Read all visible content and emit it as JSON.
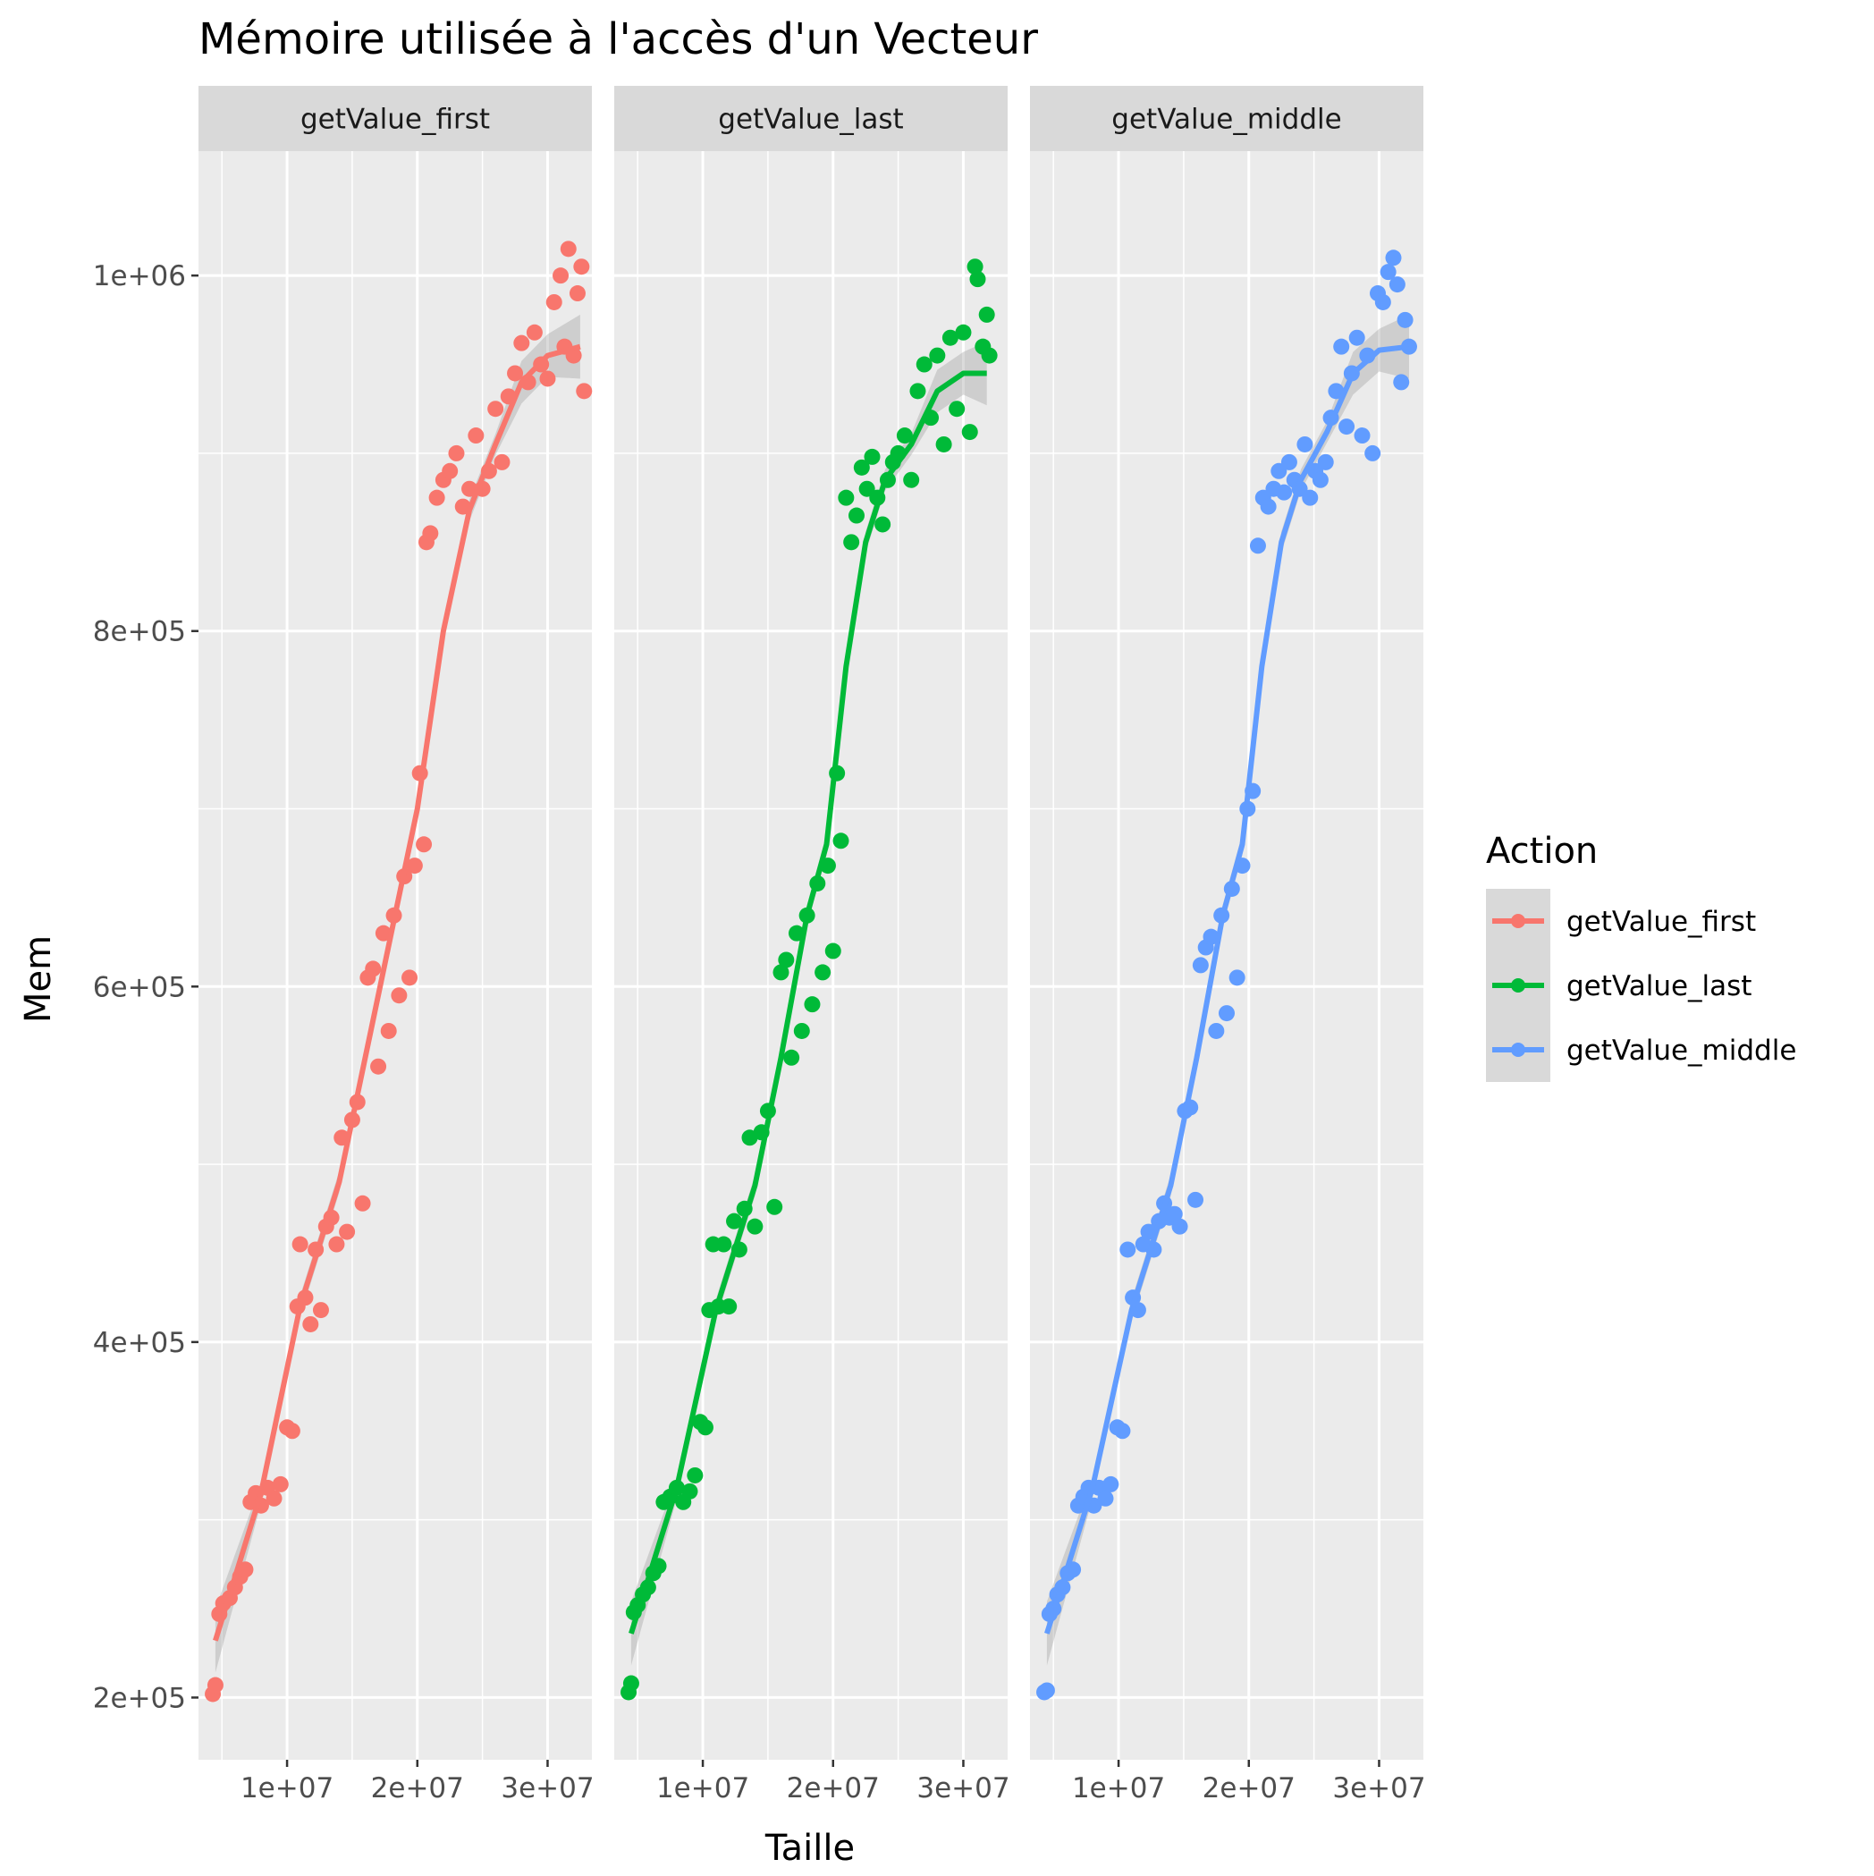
{
  "chart_data": {
    "type": "scatter",
    "title": "Mémoire utilisée à l'accès d'un Vecteur",
    "xlabel": "Taille",
    "ylabel": "Mem",
    "xlim": [
      3200000,
      33400000
    ],
    "ylim": [
      165000,
      1070000
    ],
    "x_ticks": [
      10000000,
      20000000,
      30000000
    ],
    "x_tick_labels": [
      "1e+07",
      "2e+07",
      "3e+07"
    ],
    "y_ticks": [
      200000,
      400000,
      600000,
      800000,
      1000000
    ],
    "y_tick_labels": [
      "2e+05",
      "4e+05",
      "6e+05",
      "8e+05",
      "1e+06"
    ],
    "grid": true,
    "legend": {
      "title": "Action",
      "position": "right"
    },
    "facets": [
      "getValue_first",
      "getValue_last",
      "getValue_middle"
    ],
    "series": [
      {
        "name": "getValue_first",
        "color": "#F8766D",
        "points": [
          [
            4300000,
            202000
          ],
          [
            4500000,
            207000
          ],
          [
            4800000,
            247000
          ],
          [
            5100000,
            253000
          ],
          [
            5600000,
            256000
          ],
          [
            6000000,
            262000
          ],
          [
            6400000,
            268000
          ],
          [
            6800000,
            272000
          ],
          [
            7200000,
            310000
          ],
          [
            7600000,
            315000
          ],
          [
            8000000,
            308000
          ],
          [
            8500000,
            318000
          ],
          [
            9000000,
            312000
          ],
          [
            9500000,
            320000
          ],
          [
            10000000,
            352000
          ],
          [
            10400000,
            350000
          ],
          [
            10800000,
            420000
          ],
          [
            11000000,
            455000
          ],
          [
            11400000,
            425000
          ],
          [
            11800000,
            410000
          ],
          [
            12200000,
            452000
          ],
          [
            12600000,
            418000
          ],
          [
            13000000,
            465000
          ],
          [
            13400000,
            470000
          ],
          [
            13800000,
            455000
          ],
          [
            14200000,
            515000
          ],
          [
            14600000,
            462000
          ],
          [
            15000000,
            525000
          ],
          [
            15400000,
            535000
          ],
          [
            15800000,
            478000
          ],
          [
            16200000,
            605000
          ],
          [
            16600000,
            610000
          ],
          [
            17000000,
            555000
          ],
          [
            17400000,
            630000
          ],
          [
            17800000,
            575000
          ],
          [
            18200000,
            640000
          ],
          [
            18600000,
            595000
          ],
          [
            19000000,
            662000
          ],
          [
            19400000,
            605000
          ],
          [
            19800000,
            668000
          ],
          [
            20200000,
            720000
          ],
          [
            20500000,
            680000
          ],
          [
            20700000,
            850000
          ],
          [
            21000000,
            855000
          ],
          [
            21500000,
            875000
          ],
          [
            22000000,
            885000
          ],
          [
            22500000,
            890000
          ],
          [
            23000000,
            900000
          ],
          [
            23500000,
            870000
          ],
          [
            24000000,
            880000
          ],
          [
            24500000,
            910000
          ],
          [
            25000000,
            880000
          ],
          [
            25500000,
            890000
          ],
          [
            26000000,
            925000
          ],
          [
            26500000,
            895000
          ],
          [
            27000000,
            932000
          ],
          [
            27500000,
            945000
          ],
          [
            28000000,
            962000
          ],
          [
            28500000,
            940000
          ],
          [
            29000000,
            968000
          ],
          [
            29500000,
            950000
          ],
          [
            30000000,
            942000
          ],
          [
            30500000,
            985000
          ],
          [
            31000000,
            1000000
          ],
          [
            31300000,
            960000
          ],
          [
            31600000,
            1015000
          ],
          [
            32000000,
            955000
          ],
          [
            32300000,
            990000
          ],
          [
            32600000,
            1005000
          ],
          [
            32800000,
            935000
          ]
        ],
        "fit": [
          [
            4500000,
            232000
          ],
          [
            8000000,
            315000
          ],
          [
            11000000,
            420000
          ],
          [
            14000000,
            490000
          ],
          [
            16000000,
            560000
          ],
          [
            18000000,
            630000
          ],
          [
            20000000,
            700000
          ],
          [
            22000000,
            800000
          ],
          [
            24000000,
            868000
          ],
          [
            26000000,
            905000
          ],
          [
            28000000,
            940000
          ],
          [
            30000000,
            955000
          ],
          [
            32500000,
            960000
          ]
        ]
      },
      {
        "name": "getValue_last",
        "color": "#00BA38",
        "points": [
          [
            4300000,
            203000
          ],
          [
            4500000,
            208000
          ],
          [
            4700000,
            248000
          ],
          [
            5000000,
            252000
          ],
          [
            5400000,
            258000
          ],
          [
            5800000,
            262000
          ],
          [
            6200000,
            270000
          ],
          [
            6600000,
            274000
          ],
          [
            7000000,
            310000
          ],
          [
            7500000,
            313000
          ],
          [
            8000000,
            318000
          ],
          [
            8500000,
            310000
          ],
          [
            9000000,
            316000
          ],
          [
            9400000,
            325000
          ],
          [
            9800000,
            355000
          ],
          [
            10200000,
            352000
          ],
          [
            10500000,
            418000
          ],
          [
            10800000,
            455000
          ],
          [
            11200000,
            420000
          ],
          [
            11600000,
            455000
          ],
          [
            12000000,
            420000
          ],
          [
            12400000,
            468000
          ],
          [
            12800000,
            452000
          ],
          [
            13200000,
            475000
          ],
          [
            13600000,
            515000
          ],
          [
            14000000,
            465000
          ],
          [
            14500000,
            518000
          ],
          [
            15000000,
            530000
          ],
          [
            15500000,
            476000
          ],
          [
            16000000,
            608000
          ],
          [
            16400000,
            615000
          ],
          [
            16800000,
            560000
          ],
          [
            17200000,
            630000
          ],
          [
            17600000,
            575000
          ],
          [
            18000000,
            640000
          ],
          [
            18400000,
            590000
          ],
          [
            18800000,
            658000
          ],
          [
            19200000,
            608000
          ],
          [
            19600000,
            668000
          ],
          [
            20000000,
            620000
          ],
          [
            20300000,
            720000
          ],
          [
            20600000,
            682000
          ],
          [
            21000000,
            875000
          ],
          [
            21400000,
            850000
          ],
          [
            21800000,
            865000
          ],
          [
            22200000,
            892000
          ],
          [
            22600000,
            880000
          ],
          [
            23000000,
            898000
          ],
          [
            23400000,
            875000
          ],
          [
            23800000,
            860000
          ],
          [
            24200000,
            885000
          ],
          [
            24600000,
            895000
          ],
          [
            25000000,
            900000
          ],
          [
            25500000,
            910000
          ],
          [
            26000000,
            885000
          ],
          [
            26500000,
            935000
          ],
          [
            27000000,
            950000
          ],
          [
            27500000,
            920000
          ],
          [
            28000000,
            955000
          ],
          [
            28500000,
            905000
          ],
          [
            29000000,
            965000
          ],
          [
            29500000,
            925000
          ],
          [
            30000000,
            968000
          ],
          [
            30500000,
            912000
          ],
          [
            30900000,
            1005000
          ],
          [
            31100000,
            998000
          ],
          [
            31500000,
            960000
          ],
          [
            31800000,
            978000
          ],
          [
            32000000,
            955000
          ]
        ],
        "fit": [
          [
            4500000,
            236000
          ],
          [
            8000000,
            318000
          ],
          [
            11000000,
            418000
          ],
          [
            14000000,
            488000
          ],
          [
            16000000,
            560000
          ],
          [
            18000000,
            640000
          ],
          [
            19500000,
            680000
          ],
          [
            21000000,
            780000
          ],
          [
            22500000,
            850000
          ],
          [
            24000000,
            885000
          ],
          [
            26000000,
            905000
          ],
          [
            28000000,
            935000
          ],
          [
            30000000,
            945000
          ],
          [
            31800000,
            945000
          ]
        ]
      },
      {
        "name": "getValue_middle",
        "color": "#619CFF",
        "points": [
          [
            4300000,
            203000
          ],
          [
            4500000,
            204000
          ],
          [
            4700000,
            247000
          ],
          [
            5000000,
            250000
          ],
          [
            5300000,
            258000
          ],
          [
            5700000,
            262000
          ],
          [
            6100000,
            270000
          ],
          [
            6500000,
            272000
          ],
          [
            6900000,
            308000
          ],
          [
            7300000,
            313000
          ],
          [
            7700000,
            318000
          ],
          [
            8100000,
            308000
          ],
          [
            8500000,
            318000
          ],
          [
            9000000,
            312000
          ],
          [
            9400000,
            320000
          ],
          [
            9900000,
            352000
          ],
          [
            10300000,
            350000
          ],
          [
            10700000,
            452000
          ],
          [
            11100000,
            425000
          ],
          [
            11500000,
            418000
          ],
          [
            11900000,
            455000
          ],
          [
            12300000,
            462000
          ],
          [
            12700000,
            452000
          ],
          [
            13100000,
            468000
          ],
          [
            13500000,
            478000
          ],
          [
            13900000,
            470000
          ],
          [
            14300000,
            472000
          ],
          [
            14700000,
            465000
          ],
          [
            15100000,
            530000
          ],
          [
            15500000,
            532000
          ],
          [
            15900000,
            480000
          ],
          [
            16300000,
            612000
          ],
          [
            16700000,
            622000
          ],
          [
            17100000,
            628000
          ],
          [
            17500000,
            575000
          ],
          [
            17900000,
            640000
          ],
          [
            18300000,
            585000
          ],
          [
            18700000,
            655000
          ],
          [
            19100000,
            605000
          ],
          [
            19500000,
            668000
          ],
          [
            19900000,
            700000
          ],
          [
            20300000,
            710000
          ],
          [
            20700000,
            848000
          ],
          [
            21100000,
            875000
          ],
          [
            21500000,
            870000
          ],
          [
            21900000,
            880000
          ],
          [
            22300000,
            890000
          ],
          [
            22700000,
            878000
          ],
          [
            23100000,
            895000
          ],
          [
            23500000,
            885000
          ],
          [
            23900000,
            880000
          ],
          [
            24300000,
            905000
          ],
          [
            24700000,
            875000
          ],
          [
            25100000,
            890000
          ],
          [
            25500000,
            885000
          ],
          [
            25900000,
            895000
          ],
          [
            26300000,
            920000
          ],
          [
            26700000,
            935000
          ],
          [
            27100000,
            960000
          ],
          [
            27500000,
            915000
          ],
          [
            27900000,
            945000
          ],
          [
            28300000,
            965000
          ],
          [
            28700000,
            910000
          ],
          [
            29100000,
            955000
          ],
          [
            29500000,
            900000
          ],
          [
            29900000,
            990000
          ],
          [
            30300000,
            985000
          ],
          [
            30700000,
            1002000
          ],
          [
            31100000,
            1010000
          ],
          [
            31400000,
            995000
          ],
          [
            31700000,
            940000
          ],
          [
            32000000,
            975000
          ],
          [
            32300000,
            960000
          ]
        ],
        "fit": [
          [
            4500000,
            236000
          ],
          [
            8000000,
            318000
          ],
          [
            11000000,
            418000
          ],
          [
            14000000,
            488000
          ],
          [
            16000000,
            560000
          ],
          [
            18000000,
            640000
          ],
          [
            19500000,
            680000
          ],
          [
            21000000,
            780000
          ],
          [
            22500000,
            850000
          ],
          [
            24000000,
            885000
          ],
          [
            26000000,
            912000
          ],
          [
            28000000,
            945000
          ],
          [
            30000000,
            958000
          ],
          [
            32300000,
            960000
          ]
        ]
      }
    ]
  }
}
